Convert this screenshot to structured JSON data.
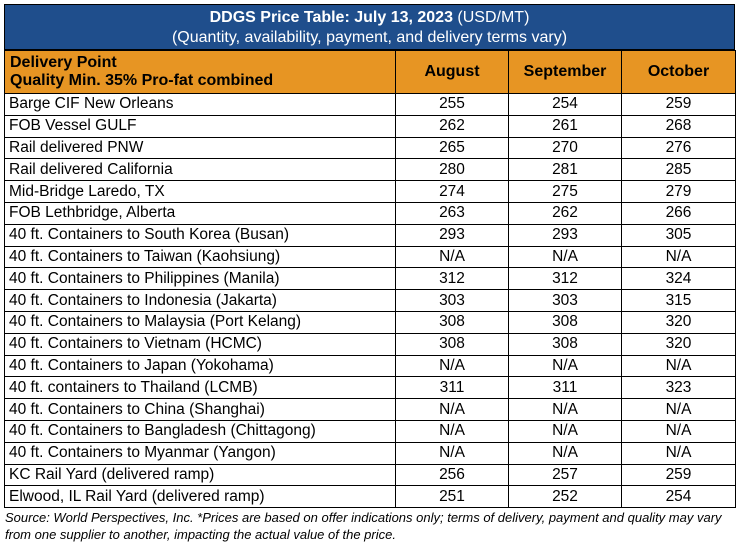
{
  "title": {
    "bold": "DDGS Price Table: July 13, 2023",
    "unit": " (USD/MT)",
    "subtitle": "(Quantity, availability, payment, and delivery terms vary)"
  },
  "header": {
    "delivery_point_line1": "Delivery Point",
    "delivery_point_line2": "Quality Min. 35% Pro-fat combined",
    "months": [
      "August",
      "September",
      "October"
    ]
  },
  "rows": [
    {
      "point": "Barge CIF New Orleans",
      "values": [
        "255",
        "254",
        "259"
      ]
    },
    {
      "point": "FOB Vessel GULF",
      "values": [
        "262",
        "261",
        "268"
      ]
    },
    {
      "point": "Rail delivered PNW",
      "values": [
        "265",
        "270",
        "276"
      ]
    },
    {
      "point": "Rail delivered California",
      "values": [
        "280",
        "281",
        "285"
      ]
    },
    {
      "point": "Mid-Bridge Laredo, TX",
      "values": [
        "274",
        "275",
        "279"
      ]
    },
    {
      "point": "FOB Lethbridge, Alberta",
      "values": [
        "263",
        "262",
        "266"
      ]
    },
    {
      "point": "40 ft. Containers to South Korea (Busan)",
      "values": [
        "293",
        "293",
        "305"
      ]
    },
    {
      "point": "40 ft. Containers to Taiwan (Kaohsiung)",
      "values": [
        "N/A",
        "N/A",
        "N/A"
      ]
    },
    {
      "point": "40 ft. Containers to Philippines (Manila)",
      "values": [
        "312",
        "312",
        "324"
      ]
    },
    {
      "point": "40 ft. Containers to Indonesia (Jakarta)",
      "values": [
        "303",
        "303",
        "315"
      ]
    },
    {
      "point": "40 ft. Containers to Malaysia (Port Kelang)",
      "values": [
        "308",
        "308",
        "320"
      ]
    },
    {
      "point": "40 ft. Containers to Vietnam (HCMC)",
      "values": [
        "308",
        "308",
        "320"
      ]
    },
    {
      "point": "40 ft. Containers to Japan (Yokohama)",
      "values": [
        "N/A",
        "N/A",
        "N/A"
      ]
    },
    {
      "point": "40 ft. containers to Thailand (LCMB)",
      "values": [
        "311",
        "311",
        "323"
      ]
    },
    {
      "point": "40 ft. Containers to China (Shanghai)",
      "values": [
        "N/A",
        "N/A",
        "N/A"
      ]
    },
    {
      "point": "40 ft. Containers to Bangladesh (Chittagong)",
      "values": [
        "N/A",
        "N/A",
        "N/A"
      ]
    },
    {
      "point": "40 ft. Containers to Myanmar (Yangon)",
      "values": [
        "N/A",
        "N/A",
        "N/A"
      ]
    },
    {
      "point": "KC Rail Yard (delivered ramp)",
      "values": [
        "256",
        "257",
        "259"
      ]
    },
    {
      "point": "Elwood, IL Rail Yard (delivered ramp)",
      "values": [
        "251",
        "252",
        "254"
      ]
    }
  ],
  "source": "Source: World Perspectives, Inc. *Prices are based on offer indications only; terms of delivery, payment and quality may vary from one supplier to another, impacting the actual value of the price.",
  "colors": {
    "title_bg": "#1f4e8c",
    "header_bg": "#e79523"
  }
}
